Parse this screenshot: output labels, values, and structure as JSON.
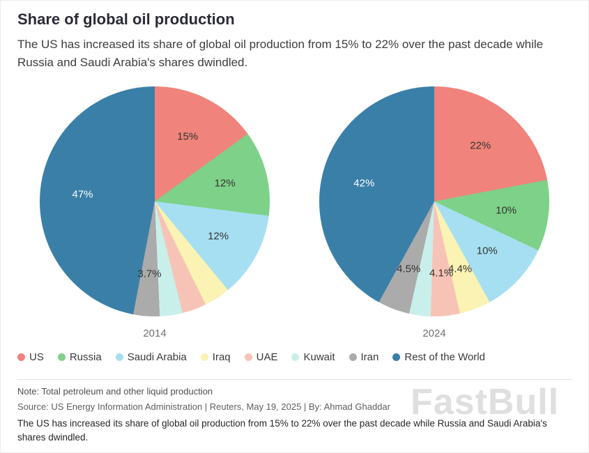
{
  "header": {
    "title": "Share of global oil production",
    "subtitle": "The US has increased its share of global oil production from 15% to 22% over the past decade while Russia and Saudi Arabia's shares dwindled."
  },
  "chart_data": {
    "type": "pie",
    "categories": [
      "US",
      "Russia",
      "Saudi Arabia",
      "Iraq",
      "UAE",
      "Kuwait",
      "Iran",
      "Rest of the World"
    ],
    "colors": [
      "#F0837B",
      "#7ED188",
      "#A6DFF1",
      "#FAF3B3",
      "#F8C3B7",
      "#C9EFEA",
      "#ABABAB",
      "#3A7FA8"
    ],
    "white_label_index": 7,
    "pies": [
      {
        "label": "2014",
        "values": [
          15,
          12,
          12,
          3.7,
          3.4,
          3.2,
          3.7,
          47
        ],
        "slice_labels": [
          "15%",
          "12%",
          "12%",
          "",
          "",
          "",
          "3.7%",
          "47%"
        ]
      },
      {
        "label": "2024",
        "values": [
          22,
          10,
          10,
          4.4,
          4.1,
          3.0,
          4.5,
          42
        ],
        "slice_labels": [
          "22%",
          "10%",
          "10%",
          "4.4%",
          "4.1%",
          "",
          "4.5%",
          "42%"
        ]
      }
    ]
  },
  "footer": {
    "note": "Note: Total petroleum and other liquid production",
    "source": "Source: US Energy Information Administration | Reuters, May 19, 2025 | By: Ahmad Ghaddar",
    "caption": "The US has increased its share of global oil production from 15% to 22% over the past decade while Russia and Saudi Arabia's shares dwindled.",
    "watermark": "FastBull"
  }
}
